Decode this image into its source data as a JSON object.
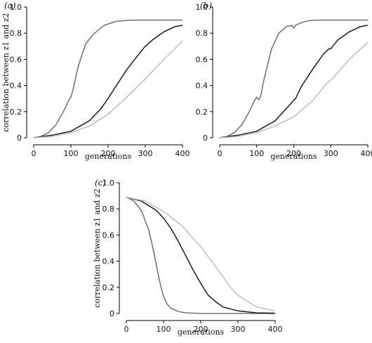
{
  "colors": {
    "series_dark": "#1a1a1a",
    "series_mid": "#707070",
    "series_light": "#bdbdbd"
  },
  "chart_data": [
    {
      "panel_label": "(a)",
      "type": "line",
      "xlabel": "generations",
      "ylabel": "correlation between z1 and z2",
      "xlim": [
        0,
        400
      ],
      "ylim": [
        0,
        1.0
      ],
      "xticks": [
        0,
        100,
        200,
        300,
        400
      ],
      "yticks": [
        0,
        0.2,
        0.4,
        0.6,
        0.8,
        1.0
      ],
      "series": [
        {
          "color": "series_mid",
          "x": [
            0,
            20,
            40,
            60,
            80,
            95,
            100,
            105,
            120,
            140,
            160,
            180,
            190,
            200,
            220,
            240,
            260,
            280,
            300,
            320,
            350,
            400
          ],
          "y": [
            0,
            0.01,
            0.04,
            0.1,
            0.2,
            0.29,
            0.31,
            0.36,
            0.55,
            0.72,
            0.79,
            0.84,
            0.86,
            0.87,
            0.89,
            0.895,
            0.9,
            0.9,
            0.9,
            0.9,
            0.9,
            0.9
          ]
        },
        {
          "color": "series_dark",
          "x": [
            0,
            50,
            100,
            150,
            180,
            200,
            220,
            250,
            280,
            300,
            320,
            350,
            380,
            400
          ],
          "y": [
            0,
            0.02,
            0.05,
            0.13,
            0.22,
            0.3,
            0.39,
            0.52,
            0.63,
            0.7,
            0.75,
            0.81,
            0.85,
            0.86
          ]
        },
        {
          "color": "series_light",
          "x": [
            0,
            50,
            100,
            150,
            200,
            250,
            300,
            350,
            400
          ],
          "y": [
            0,
            0.01,
            0.04,
            0.09,
            0.18,
            0.31,
            0.45,
            0.6,
            0.74
          ]
        }
      ]
    },
    {
      "panel_label": "(b)",
      "type": "line",
      "xlabel": "generations",
      "ylabel": "",
      "xlim": [
        0,
        400
      ],
      "ylim": [
        0,
        1.0
      ],
      "xticks": [
        0,
        100,
        200,
        300,
        400
      ],
      "yticks": [
        0,
        0.2,
        0.4,
        0.6,
        0.8,
        1.0
      ],
      "series": [
        {
          "color": "series_mid",
          "x": [
            0,
            20,
            40,
            60,
            80,
            95,
            100,
            105,
            110,
            120,
            140,
            160,
            180,
            195,
            200,
            205,
            220,
            240,
            260,
            300,
            350,
            400
          ],
          "y": [
            0,
            0.01,
            0.04,
            0.1,
            0.2,
            0.29,
            0.31,
            0.29,
            0.31,
            0.45,
            0.68,
            0.8,
            0.85,
            0.86,
            0.84,
            0.86,
            0.88,
            0.895,
            0.9,
            0.9,
            0.9,
            0.9
          ]
        },
        {
          "color": "series_dark",
          "x": [
            0,
            50,
            100,
            150,
            195,
            200,
            205,
            220,
            250,
            280,
            295,
            300,
            305,
            320,
            350,
            380,
            400
          ],
          "y": [
            0,
            0.02,
            0.05,
            0.13,
            0.27,
            0.29,
            0.3,
            0.39,
            0.52,
            0.64,
            0.68,
            0.68,
            0.7,
            0.75,
            0.81,
            0.85,
            0.86
          ]
        },
        {
          "color": "series_light",
          "x": [
            0,
            50,
            100,
            150,
            200,
            250,
            290,
            300,
            310,
            350,
            400
          ],
          "y": [
            0,
            0.01,
            0.04,
            0.09,
            0.16,
            0.28,
            0.42,
            0.44,
            0.47,
            0.6,
            0.73
          ]
        }
      ]
    },
    {
      "panel_label": "(c)",
      "type": "line",
      "xlabel": "generations",
      "ylabel": "correlation between z1 and z2",
      "xlim": [
        0,
        400
      ],
      "ylim": [
        0,
        1.0
      ],
      "xticks": [
        0,
        100,
        200,
        300,
        400
      ],
      "yticks": [
        0,
        0.2,
        0.4,
        0.6,
        0.8,
        1.0
      ],
      "series": [
        {
          "color": "series_mid",
          "x": [
            0,
            20,
            40,
            60,
            70,
            80,
            90,
            100,
            110,
            120,
            140,
            160,
            200,
            300,
            400
          ],
          "y": [
            0.89,
            0.86,
            0.79,
            0.64,
            0.52,
            0.38,
            0.24,
            0.13,
            0.07,
            0.04,
            0.015,
            0.005,
            0,
            0,
            0
          ]
        },
        {
          "color": "series_dark",
          "x": [
            0,
            40,
            80,
            100,
            120,
            140,
            160,
            180,
            200,
            220,
            240,
            260,
            300,
            350,
            400
          ],
          "y": [
            0.89,
            0.86,
            0.79,
            0.73,
            0.65,
            0.55,
            0.44,
            0.33,
            0.23,
            0.14,
            0.09,
            0.05,
            0.02,
            0.005,
            0.002
          ]
        },
        {
          "color": "series_light",
          "x": [
            0,
            50,
            100,
            150,
            200,
            250,
            280,
            300,
            350,
            400
          ],
          "y": [
            0.89,
            0.86,
            0.78,
            0.67,
            0.51,
            0.32,
            0.2,
            0.14,
            0.05,
            0.02
          ]
        }
      ]
    }
  ]
}
